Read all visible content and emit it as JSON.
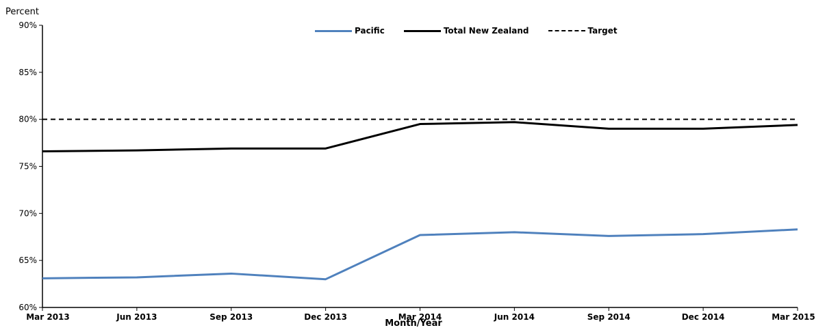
{
  "chart_data": {
    "type": "line",
    "title": "",
    "ylabel": "Percent",
    "xlabel": "Month/Year",
    "categories": [
      "Mar 2013",
      "Jun 2013",
      "Sep 2013",
      "Dec 2013",
      "Mar 2014",
      "Jun 2014",
      "Sep 2014",
      "Dec 2014",
      "Mar 2015"
    ],
    "ylim": [
      60,
      90
    ],
    "yticks": [
      "60%",
      "65%",
      "70%",
      "75%",
      "80%",
      "85%",
      "90%"
    ],
    "ytick_values": [
      60,
      65,
      70,
      75,
      80,
      85,
      90
    ],
    "grid": false,
    "legend_position": "top-center",
    "series": [
      {
        "name": "Pacific",
        "color": "#4f81bd",
        "style": "solid",
        "values": [
          63.1,
          63.2,
          63.6,
          63.0,
          67.7,
          68.0,
          67.6,
          67.8,
          68.3
        ]
      },
      {
        "name": "Total New Zealand",
        "color": "#000000",
        "style": "solid",
        "values": [
          76.6,
          76.7,
          76.9,
          76.9,
          79.5,
          79.7,
          79.0,
          79.0,
          79.4
        ]
      },
      {
        "name": "Target",
        "color": "#000000",
        "style": "dashed",
        "values": [
          80,
          80,
          80,
          80,
          80,
          80,
          80,
          80,
          80
        ]
      }
    ]
  }
}
